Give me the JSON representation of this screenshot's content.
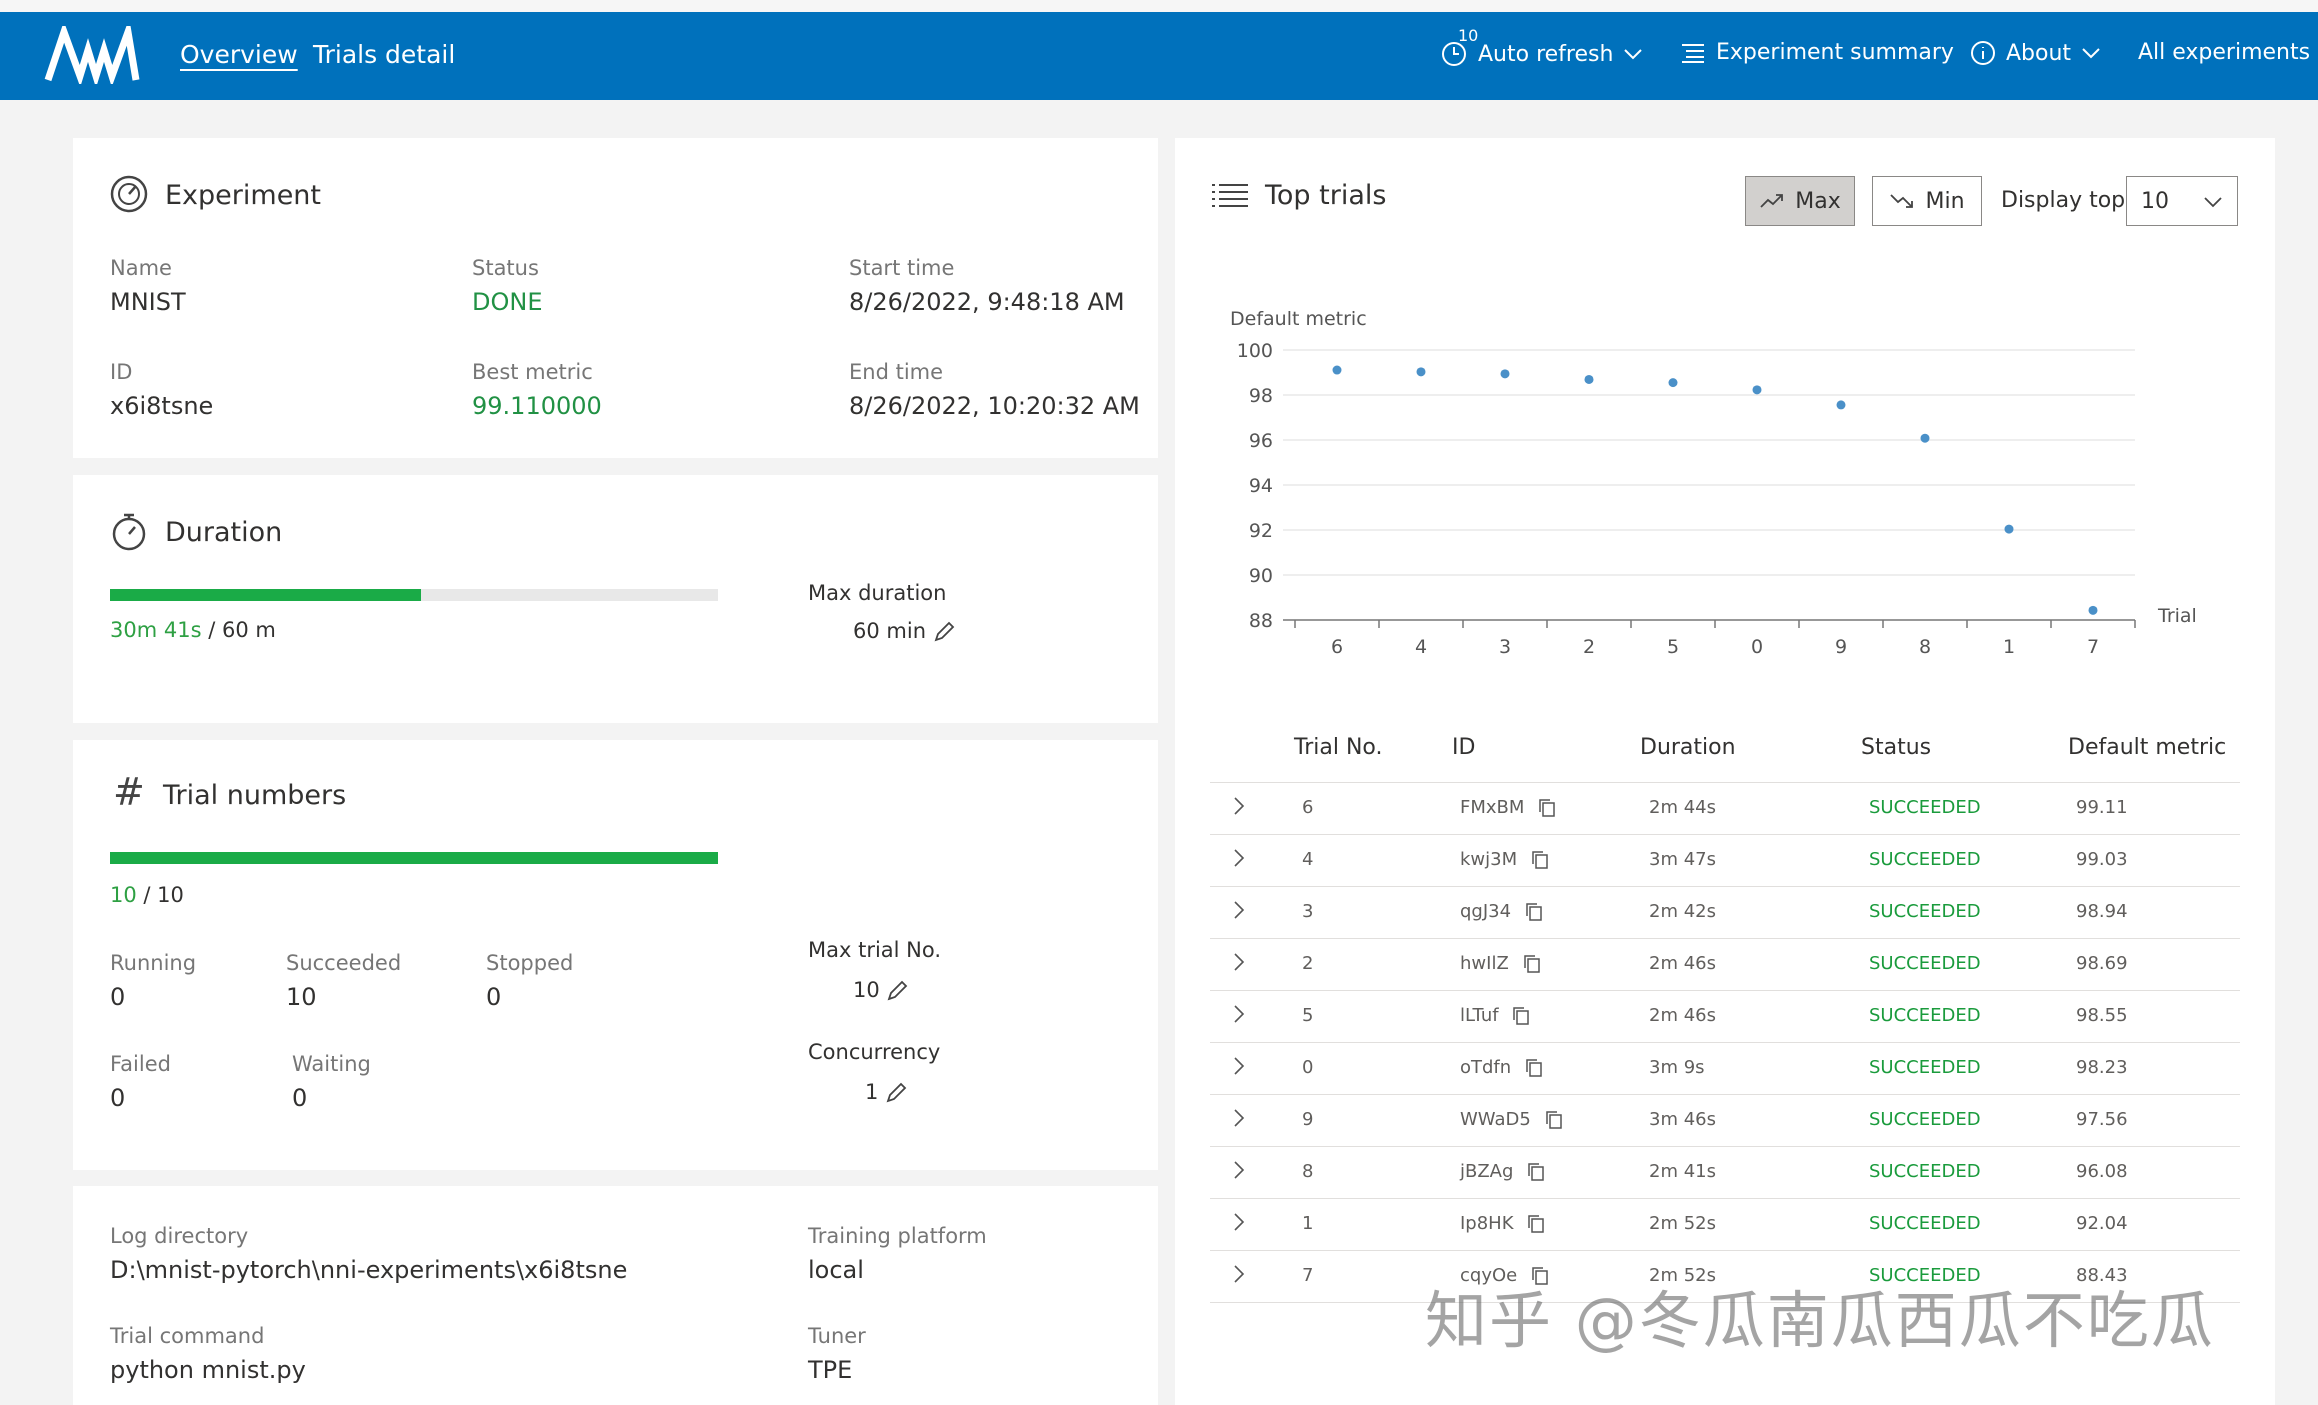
{
  "header": {
    "nav": [
      "Overview",
      "Trials detail"
    ],
    "refresh_count": "10",
    "auto_refresh": "Auto refresh",
    "experiment_summary": "Experiment summary",
    "about": "About",
    "all_experiments": "All experiments"
  },
  "experiment": {
    "title": "Experiment",
    "name_label": "Name",
    "name": "MNIST",
    "status_label": "Status",
    "status": "DONE",
    "start_label": "Start time",
    "start": "8/26/2022, 9:48:18 AM",
    "id_label": "ID",
    "id": "x6i8tsne",
    "best_label": "Best metric",
    "best": "99.110000",
    "end_label": "End time",
    "end": "8/26/2022, 10:20:32 AM"
  },
  "duration": {
    "title": "Duration",
    "elapsed": "30m 41s",
    "total": "/ 60 m",
    "progress": 0.511,
    "max_label": "Max duration",
    "max_value": "60 min"
  },
  "trials": {
    "title": "Trial numbers",
    "done": "10",
    "total": "/ 10",
    "progress": 1.0,
    "running_label": "Running",
    "running": "0",
    "succeeded_label": "Succeeded",
    "succeeded": "10",
    "stopped_label": "Stopped",
    "stopped": "0",
    "failed_label": "Failed",
    "failed": "0",
    "waiting_label": "Waiting",
    "waiting": "0",
    "max_trial_label": "Max trial No.",
    "max_trial": "10",
    "concurrency_label": "Concurrency",
    "concurrency": "1"
  },
  "info": {
    "log_dir_label": "Log directory",
    "log_dir": "D:\\mnist-pytorch\\nni-experiments\\x6i8tsne",
    "platform_label": "Training platform",
    "platform": "local",
    "command_label": "Trial command",
    "command": "python mnist.py",
    "tuner_label": "Tuner",
    "tuner": "TPE"
  },
  "top_trials": {
    "title": "Top trials",
    "max_label": "Max",
    "min_label": "Min",
    "display_top_label": "Display top",
    "display_top_value": "10",
    "columns": [
      "Trial No.",
      "ID",
      "Duration",
      "Status",
      "Default metric"
    ],
    "rows": [
      {
        "no": "6",
        "id": "FMxBM",
        "duration": "2m 44s",
        "status": "SUCCEEDED",
        "metric": "99.11"
      },
      {
        "no": "4",
        "id": "kwj3M",
        "duration": "3m 47s",
        "status": "SUCCEEDED",
        "metric": "99.03"
      },
      {
        "no": "3",
        "id": "qgJ34",
        "duration": "2m 42s",
        "status": "SUCCEEDED",
        "metric": "98.94"
      },
      {
        "no": "2",
        "id": "hwIlZ",
        "duration": "2m 46s",
        "status": "SUCCEEDED",
        "metric": "98.69"
      },
      {
        "no": "5",
        "id": "lLTuf",
        "duration": "2m 46s",
        "status": "SUCCEEDED",
        "metric": "98.55"
      },
      {
        "no": "0",
        "id": "oTdfn",
        "duration": "3m 9s",
        "status": "SUCCEEDED",
        "metric": "98.23"
      },
      {
        "no": "9",
        "id": "WWaD5",
        "duration": "3m 46s",
        "status": "SUCCEEDED",
        "metric": "97.56"
      },
      {
        "no": "8",
        "id": "jBZAg",
        "duration": "2m 41s",
        "status": "SUCCEEDED",
        "metric": "96.08"
      },
      {
        "no": "1",
        "id": "Ip8HK",
        "duration": "2m 52s",
        "status": "SUCCEEDED",
        "metric": "92.04"
      },
      {
        "no": "7",
        "id": "cqyOe",
        "duration": "2m 52s",
        "status": "SUCCEEDED",
        "metric": "88.43"
      }
    ]
  },
  "chart_data": {
    "type": "scatter",
    "ylabel": "Default metric",
    "xlabel": "Trial",
    "categories": [
      "6",
      "4",
      "3",
      "2",
      "5",
      "0",
      "9",
      "8",
      "1",
      "7"
    ],
    "values": [
      99.11,
      99.03,
      98.94,
      98.69,
      98.55,
      98.23,
      97.56,
      96.08,
      92.04,
      88.43
    ],
    "ylim": [
      88,
      100
    ],
    "yticks": [
      "100",
      "98",
      "96",
      "94",
      "92",
      "90",
      "88"
    ],
    "grid": true,
    "color": "#4a90c8"
  },
  "watermark": "知乎 @冬瓜南瓜西瓜不吃瓜",
  "colors": {
    "header": "#0071bc",
    "accent_green": "#1aab47"
  }
}
